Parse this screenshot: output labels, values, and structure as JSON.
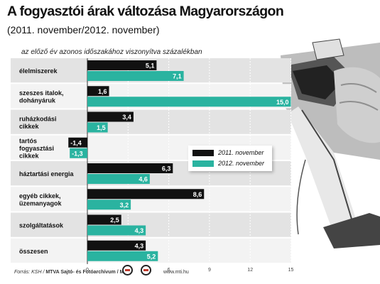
{
  "header": {
    "title": "A fogyasztói árak változása Magyarországon",
    "subtitle": "(2011. november/2012. november)",
    "note": "az előző év azonos időszakához viszonyítva százalékban"
  },
  "footer": {
    "source_prefix": "Forrás: KSH / ",
    "source_bold": "MTVA Sajtó- és Fotóarchívum / MTI",
    "credit": "www.mti.hu"
  },
  "colors": {
    "series_2011": "#111111",
    "series_2012": "#2ab3a0",
    "band_dark": "#e3e3e3",
    "band_light": "#f3f3f3"
  },
  "chart_data": {
    "type": "bar",
    "orientation": "horizontal",
    "categories": [
      "élelmiszerek",
      "szeszes italok,\ndohányáruk",
      "ruházkodási\ncikkek",
      "tartós\nfogyasztási\ncikkek",
      "háztartási energia",
      "egyéb cikkek,\nüzemanyagok",
      "szolgáltatások",
      "összesen"
    ],
    "series": [
      {
        "name": "2011. november",
        "values": [
          5.1,
          1.6,
          3.4,
          -1.4,
          6.3,
          8.6,
          2.5,
          4.3
        ],
        "labels": [
          "5,1",
          "1,6",
          "3,4",
          "-1,4",
          "6,3",
          "8,6",
          "2,5",
          "4,3"
        ]
      },
      {
        "name": "2012. november",
        "values": [
          7.1,
          15.0,
          1.5,
          -1.3,
          4.6,
          3.2,
          4.3,
          5.2
        ],
        "labels": [
          "7,1",
          "15,0",
          "1,5",
          "-1,3",
          "4,6",
          "3,2",
          "4,3",
          "5,2"
        ]
      }
    ],
    "xticks": [
      "0",
      "3",
      "6",
      "9",
      "12",
      "15"
    ],
    "xlim": [
      -1.5,
      15
    ],
    "legend_position": "right-middle",
    "grid": true
  }
}
